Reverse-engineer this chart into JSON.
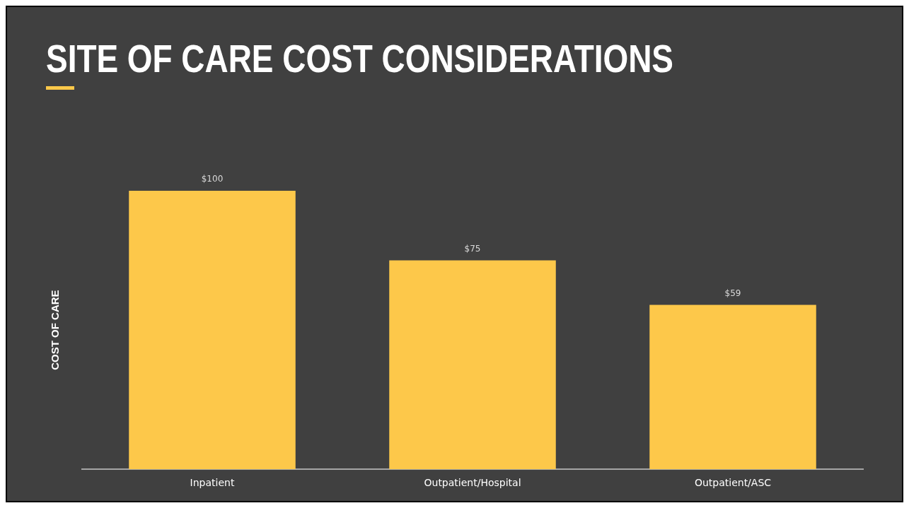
{
  "chart_data": {
    "type": "bar",
    "title": "SITE OF CARE COST CONSIDERATIONS",
    "ylabel": "COST OF CARE",
    "categories": [
      "Inpatient",
      "Outpatient/Hospital",
      "Outpatient/ASC"
    ],
    "values": [
      100,
      75,
      59
    ],
    "value_labels": [
      "$100",
      "$75",
      "$59"
    ],
    "color": "#fdc84a",
    "grid": false,
    "legend": false,
    "tick_labels": "x"
  }
}
